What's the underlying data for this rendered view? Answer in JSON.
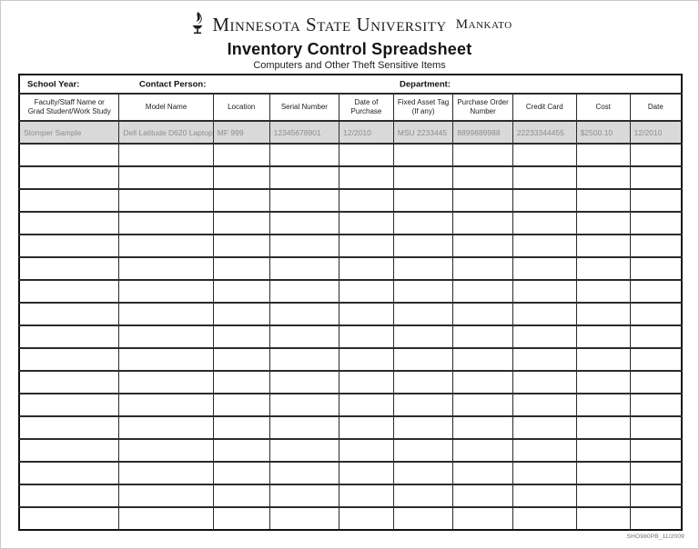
{
  "header": {
    "logo_icon": "torch-flame-icon",
    "university_name": "Minnesota State University",
    "university_campus": "Mankato",
    "title": "Inventory Control Spreadsheet",
    "subtitle": "Computers and Other Theft Sensitive Items"
  },
  "form_meta": {
    "school_year_label": "School Year:",
    "contact_person_label": "Contact Person:",
    "department_label": "Department:"
  },
  "table": {
    "columns": [
      {
        "id": "faculty-staff-name",
        "label": "Faculty/Staff Name or\nGrad Student/Work Study",
        "width_pct": 15.1
      },
      {
        "id": "model-name",
        "label": "Model Name",
        "width_pct": 14.2
      },
      {
        "id": "location",
        "label": "Location",
        "width_pct": 8.5
      },
      {
        "id": "serial-number",
        "label": "Serial Number",
        "width_pct": 10.5
      },
      {
        "id": "date-of-purchase",
        "label": "Date of\nPurchase",
        "width_pct": 8.2
      },
      {
        "id": "fixed-asset-tag",
        "label": "Fixed Asset Tag\n(If any)",
        "width_pct": 9.0
      },
      {
        "id": "purchase-order-number",
        "label": "Purchase Order\nNumber",
        "width_pct": 9.0
      },
      {
        "id": "credit-card",
        "label": "Credit Card",
        "width_pct": 9.6
      },
      {
        "id": "cost",
        "label": "Cost",
        "width_pct": 8.1
      },
      {
        "id": "date",
        "label": "Date",
        "width_pct": 7.8
      }
    ],
    "sample_row": [
      "Stomper Sample",
      "Dell Latitude D620 Laptop",
      "MF 999",
      "12345678901",
      "12/2010",
      "MSU 2233445",
      "8899889988",
      "22233344455",
      "$2500.10",
      "12/2010"
    ],
    "empty_row_count": 17
  },
  "footer": {
    "form_code": "SHO980PB_11/2009"
  },
  "colors": {
    "sample_row_bg": "#d9d9d9",
    "sample_row_text": "#8e8e8e",
    "grid_line": "#2b2b2b",
    "outer_border": "#111111"
  }
}
